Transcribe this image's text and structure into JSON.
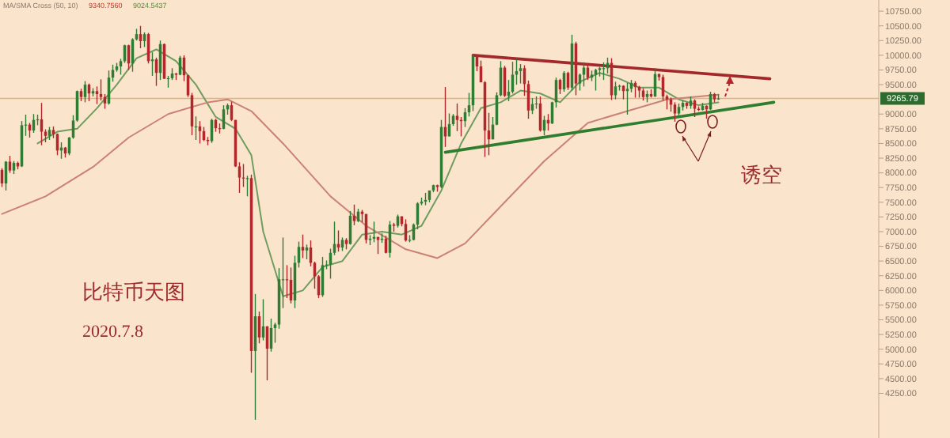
{
  "chart_data": {
    "type": "candlestick",
    "title": "比特币天图",
    "subtitle": "2020.7.8",
    "annotations": [
      "MA/SMA Cross (50, 10)",
      "9340.7560",
      "9024.5437",
      "诱空"
    ],
    "categories": [
      null,
      null,
      null,
      null,
      null,
      null,
      null,
      null,
      null,
      null,
      null,
      null,
      null,
      null,
      null,
      null,
      null,
      null,
      null,
      null,
      null,
      null,
      null,
      null,
      null,
      null,
      null,
      null,
      null,
      null,
      null,
      null,
      null,
      null,
      null,
      null,
      null,
      null,
      null,
      null,
      null,
      null,
      null,
      null,
      null,
      null,
      null,
      null,
      null,
      null,
      null,
      null,
      null,
      null,
      null,
      null,
      null,
      null,
      null,
      null,
      null,
      null,
      null,
      null,
      null,
      null,
      null,
      null,
      null,
      null,
      null,
      null,
      null,
      null,
      null,
      null,
      null,
      null,
      null,
      null,
      null,
      null,
      null,
      null,
      null,
      null,
      null,
      null,
      null,
      null,
      null,
      null,
      null,
      null,
      null,
      null,
      null,
      null,
      null,
      null,
      null,
      null,
      null,
      null,
      null,
      null,
      null,
      null,
      null,
      null,
      null,
      null,
      null,
      null,
      null,
      null,
      null,
      null,
      null,
      null,
      null,
      null,
      null,
      null,
      null,
      null,
      null,
      null,
      null,
      null,
      null,
      null,
      null,
      null,
      null,
      null,
      null,
      null,
      null,
      null,
      null,
      null,
      null,
      null,
      null,
      null,
      null,
      null,
      null,
      null,
      null,
      null,
      null,
      null,
      null,
      null,
      null,
      null,
      null,
      null,
      null,
      null,
      null,
      null,
      null,
      null,
      null,
      null,
      null,
      null,
      null,
      null,
      null,
      null,
      null,
      null,
      null,
      null,
      null,
      null,
      null,
      null,
      null,
      null,
      null,
      null,
      null,
      null,
      null,
      null,
      null,
      null,
      null,
      null,
      null,
      null,
      null,
      null,
      null,
      null,
      null,
      null,
      null,
      null,
      null,
      null,
      null,
      null,
      null,
      null,
      null,
      null,
      null,
      null,
      null,
      null,
      null,
      null,
      null,
      null,
      null,
      null
    ],
    "ohlc": [
      [
        8050,
        8080,
        7760,
        7820
      ],
      [
        7820,
        8200,
        7700,
        8190
      ],
      [
        8190,
        8290,
        8000,
        8040
      ],
      [
        8040,
        8200,
        7980,
        8170
      ],
      [
        8170,
        8190,
        8060,
        8110
      ],
      [
        8110,
        8880,
        8100,
        8810
      ],
      [
        8810,
        8990,
        8630,
        8820
      ],
      [
        8820,
        8850,
        8600,
        8720
      ],
      [
        8720,
        9000,
        8680,
        8900
      ],
      [
        8900,
        8990,
        8810,
        8910
      ],
      [
        8910,
        9190,
        8470,
        8700
      ],
      [
        8700,
        8740,
        8520,
        8630
      ],
      [
        8630,
        8780,
        8560,
        8730
      ],
      [
        8730,
        8790,
        8590,
        8660
      ],
      [
        8660,
        8670,
        8300,
        8380
      ],
      [
        8380,
        8520,
        8240,
        8430
      ],
      [
        8430,
        8440,
        8260,
        8330
      ],
      [
        8330,
        8610,
        8300,
        8600
      ],
      [
        8600,
        8980,
        8580,
        8890
      ],
      [
        8890,
        9400,
        8870,
        9390
      ],
      [
        9390,
        9430,
        9220,
        9290
      ],
      [
        9290,
        9560,
        9200,
        9500
      ],
      [
        9500,
        9520,
        9220,
        9350
      ],
      [
        9350,
        9440,
        9300,
        9390
      ],
      [
        9390,
        9470,
        9170,
        9340
      ],
      [
        9340,
        9590,
        9230,
        9290
      ],
      [
        9290,
        9340,
        9090,
        9180
      ],
      [
        9180,
        9740,
        9160,
        9620
      ],
      [
        9620,
        9840,
        9550,
        9750
      ],
      [
        9750,
        9870,
        9720,
        9810
      ],
      [
        9810,
        9940,
        9670,
        9900
      ],
      [
        9900,
        10180,
        9870,
        10170
      ],
      [
        10170,
        10180,
        9750,
        9860
      ],
      [
        9860,
        10290,
        9720,
        10270
      ],
      [
        10270,
        10450,
        10250,
        10360
      ],
      [
        10360,
        10500,
        10120,
        10240
      ],
      [
        10240,
        10390,
        10140,
        10360
      ],
      [
        10360,
        10380,
        9860,
        9900
      ],
      [
        9900,
        10050,
        9650,
        9930
      ],
      [
        9930,
        9960,
        9480,
        9700
      ],
      [
        9700,
        10250,
        9580,
        10190
      ],
      [
        10190,
        10200,
        9600,
        9600
      ],
      [
        9600,
        9650,
        9450,
        9610
      ],
      [
        9610,
        9780,
        9580,
        9690
      ],
      [
        9690,
        9700,
        9580,
        9670
      ],
      [
        9670,
        9990,
        9660,
        9960
      ],
      [
        9960,
        10000,
        9560,
        9660
      ],
      [
        9660,
        9670,
        9290,
        9320
      ],
      [
        9320,
        9360,
        8640,
        8790
      ],
      [
        8790,
        8960,
        8560,
        8790
      ],
      [
        8790,
        8880,
        8500,
        8710
      ],
      [
        8710,
        8780,
        8540,
        8560
      ],
      [
        8560,
        8610,
        8470,
        8540
      ],
      [
        8540,
        8920,
        8510,
        8900
      ],
      [
        8900,
        8920,
        8700,
        8760
      ],
      [
        8760,
        8840,
        8670,
        8750
      ],
      [
        8750,
        9150,
        8740,
        9080
      ],
      [
        9080,
        9180,
        8990,
        9150
      ],
      [
        9150,
        9210,
        8880,
        8900
      ],
      [
        8900,
        8900,
        8100,
        8110
      ],
      [
        8110,
        8180,
        7660,
        7920
      ],
      [
        7920,
        8150,
        7760,
        7910
      ],
      [
        7910,
        7950,
        7600,
        7910
      ],
      [
        7910,
        7970,
        4600,
        4970
      ],
      [
        4970,
        5940,
        3800,
        5560
      ],
      [
        5560,
        5640,
        5100,
        5200
      ],
      [
        5200,
        5850,
        5150,
        5390
      ],
      [
        5390,
        5390,
        4470,
        5010
      ],
      [
        5010,
        5520,
        4960,
        5360
      ],
      [
        5360,
        5450,
        5110,
        5420
      ],
      [
        5420,
        6380,
        5350,
        6190
      ],
      [
        6190,
        6900,
        5700,
        6190
      ],
      [
        6190,
        6430,
        5870,
        6180
      ],
      [
        6180,
        6390,
        5780,
        5830
      ],
      [
        5830,
        6590,
        5700,
        6470
      ],
      [
        6470,
        6830,
        6390,
        6740
      ],
      [
        6740,
        6950,
        6550,
        6680
      ],
      [
        6680,
        6780,
        6530,
        6730
      ],
      [
        6730,
        6850,
        6410,
        6470
      ],
      [
        6470,
        6490,
        6030,
        6240
      ],
      [
        6240,
        6260,
        5870,
        5920
      ],
      [
        5920,
        6570,
        5890,
        6430
      ],
      [
        6430,
        6510,
        6360,
        6440
      ],
      [
        6440,
        6710,
        6200,
        6640
      ],
      [
        6640,
        7170,
        6600,
        6790
      ],
      [
        6790,
        7020,
        6660,
        6730
      ],
      [
        6730,
        6900,
        6670,
        6860
      ],
      [
        6860,
        6890,
        6700,
        6790
      ],
      [
        6790,
        7350,
        6780,
        7270
      ],
      [
        7270,
        7460,
        7110,
        7180
      ],
      [
        7180,
        7390,
        7160,
        7340
      ],
      [
        7340,
        7370,
        7160,
        7300
      ],
      [
        7300,
        7300,
        6800,
        6860
      ],
      [
        6860,
        6940,
        6770,
        6880
      ],
      [
        6880,
        7170,
        6820,
        6910
      ],
      [
        6910,
        6910,
        6620,
        6860
      ],
      [
        6860,
        6970,
        6810,
        6880
      ],
      [
        6880,
        6930,
        6630,
        6640
      ],
      [
        6640,
        7180,
        6560,
        7120
      ],
      [
        7120,
        7150,
        7000,
        7100
      ],
      [
        7100,
        7290,
        7070,
        7260
      ],
      [
        7260,
        7260,
        7090,
        7130
      ],
      [
        7130,
        7210,
        6830,
        6850
      ],
      [
        6850,
        6940,
        6820,
        6860
      ],
      [
        6860,
        7140,
        6850,
        7120
      ],
      [
        7120,
        7500,
        7040,
        7480
      ],
      [
        7480,
        7580,
        7450,
        7510
      ],
      [
        7510,
        7660,
        7450,
        7540
      ],
      [
        7540,
        7700,
        7500,
        7700
      ],
      [
        7700,
        7800,
        7670,
        7790
      ],
      [
        7790,
        7800,
        7680,
        7760
      ],
      [
        7760,
        8900,
        7740,
        8780
      ],
      [
        8780,
        9460,
        8440,
        8620
      ],
      [
        8620,
        9010,
        8620,
        8830
      ],
      [
        8830,
        9000,
        8800,
        8970
      ],
      [
        8970,
        9180,
        8710,
        8900
      ],
      [
        8900,
        8950,
        8620,
        8880
      ],
      [
        8880,
        9100,
        8780,
        9030
      ],
      [
        9030,
        9360,
        8960,
        9150
      ],
      [
        9150,
        10020,
        9050,
        9990
      ],
      [
        9990,
        10000,
        9730,
        9810
      ],
      [
        9810,
        9910,
        9540,
        9540
      ],
      [
        9540,
        9560,
        8270,
        8720
      ],
      [
        8720,
        9020,
        8300,
        8570
      ],
      [
        8570,
        8950,
        8570,
        8820
      ],
      [
        8820,
        9370,
        8810,
        9320
      ],
      [
        9320,
        9900,
        9300,
        9790
      ],
      [
        9790,
        9820,
        9290,
        9310
      ],
      [
        9310,
        9580,
        9220,
        9380
      ],
      [
        9380,
        9890,
        9350,
        9670
      ],
      [
        9670,
        9940,
        9500,
        9730
      ],
      [
        9730,
        9850,
        9520,
        9780
      ],
      [
        9780,
        9830,
        9310,
        9510
      ],
      [
        9510,
        9570,
        8920,
        9060
      ],
      [
        9060,
        9270,
        9000,
        9170
      ],
      [
        9170,
        9300,
        9090,
        9180
      ],
      [
        9180,
        9300,
        8700,
        8720
      ],
      [
        8720,
        8970,
        8640,
        8900
      ],
      [
        8900,
        9000,
        8720,
        8840
      ],
      [
        8840,
        9210,
        8830,
        9200
      ],
      [
        9200,
        9620,
        9110,
        9580
      ],
      [
        9580,
        9600,
        9340,
        9420
      ],
      [
        9420,
        9730,
        9380,
        9700
      ],
      [
        9700,
        9720,
        9410,
        9450
      ],
      [
        9450,
        10350,
        9400,
        10200
      ],
      [
        10200,
        10230,
        9320,
        9520
      ],
      [
        9520,
        9690,
        9400,
        9670
      ],
      [
        9670,
        9880,
        9470,
        9790
      ],
      [
        9790,
        9850,
        9580,
        9620
      ],
      [
        9620,
        9740,
        9560,
        9670
      ],
      [
        9670,
        9770,
        9400,
        9750
      ],
      [
        9750,
        9800,
        9640,
        9780
      ],
      [
        9780,
        9880,
        9580,
        9780
      ],
      [
        9780,
        9960,
        9690,
        9870
      ],
      [
        9870,
        9950,
        9240,
        9320
      ],
      [
        9320,
        9550,
        9250,
        9470
      ],
      [
        9470,
        9500,
        9400,
        9480
      ],
      [
        9480,
        9490,
        9250,
        9390
      ],
      [
        9390,
        9530,
        8990,
        9430
      ],
      [
        9430,
        9580,
        9370,
        9530
      ],
      [
        9530,
        9560,
        9280,
        9460
      ],
      [
        9460,
        9480,
        9280,
        9400
      ],
      [
        9400,
        9440,
        9230,
        9290
      ],
      [
        9290,
        9400,
        9200,
        9340
      ],
      [
        9340,
        9420,
        9280,
        9300
      ],
      [
        9300,
        9780,
        9290,
        9680
      ],
      [
        9680,
        9690,
        9570,
        9630
      ],
      [
        9630,
        9670,
        9230,
        9300
      ],
      [
        9300,
        9330,
        9080,
        9250
      ],
      [
        9250,
        9280,
        9040,
        9160
      ],
      [
        9160,
        9200,
        8870,
        9010
      ],
      [
        9010,
        9180,
        8950,
        9120
      ],
      [
        9120,
        9230,
        9060,
        9190
      ],
      [
        9190,
        9200,
        9090,
        9140
      ],
      [
        9140,
        9300,
        9090,
        9230
      ],
      [
        9230,
        9250,
        8950,
        9090
      ],
      [
        9090,
        9130,
        9050,
        9070
      ],
      [
        9070,
        9190,
        9060,
        9140
      ],
      [
        9140,
        9150,
        8920,
        9080
      ],
      [
        9080,
        9380,
        9070,
        9340
      ],
      [
        9340,
        9360,
        9200,
        9250
      ],
      [
        9250,
        9340,
        9240,
        9266
      ],
      null,
      null,
      null,
      null,
      null,
      null,
      null,
      null,
      null,
      null,
      null,
      null,
      null,
      null,
      null,
      null,
      null,
      null,
      null,
      null,
      null,
      null,
      null,
      null,
      null,
      null,
      null,
      null,
      null,
      null,
      null,
      null,
      null,
      null,
      null,
      null,
      null,
      null,
      null,
      null
    ],
    "series": [
      {
        "type": "line",
        "color": "#6f9c5f",
        "values": [
          null,
          null,
          null,
          null,
          null,
          null,
          null,
          null,
          null,
          8500,
          null,
          null,
          null,
          null,
          8700,
          null,
          null,
          null,
          null,
          8750,
          null,
          null,
          null,
          null,
          9100,
          null,
          null,
          null,
          null,
          9500,
          null,
          null,
          null,
          null,
          9950,
          null,
          null,
          null,
          null,
          10100,
          null,
          null,
          null,
          null,
          9900,
          null,
          null,
          null,
          null,
          9500,
          null,
          null,
          null,
          null,
          8950,
          null,
          null,
          null,
          null,
          8750,
          null,
          null,
          null,
          8300,
          null,
          null,
          7000,
          null,
          null,
          null,
          null,
          5900,
          null,
          null,
          null,
          null,
          6000,
          null,
          null,
          null,
          null,
          6400,
          null,
          null,
          null,
          null,
          6500,
          null,
          null,
          null,
          null,
          6950,
          null,
          null,
          null,
          null,
          7000,
          null,
          null,
          null,
          null,
          6950,
          null,
          null,
          null,
          null,
          7100,
          null,
          null,
          null,
          null,
          7700,
          null,
          null,
          null,
          null,
          8500,
          null,
          null,
          null,
          null,
          9100,
          null,
          null,
          null,
          null,
          9200,
          null,
          null,
          null,
          null,
          9400,
          null,
          null,
          null,
          null,
          9350,
          null,
          null,
          null,
          null,
          9200,
          null,
          null,
          null,
          null,
          9550,
          null,
          null,
          null,
          null,
          9700,
          null,
          null,
          null,
          null,
          9600,
          null,
          null,
          null,
          null,
          9450,
          null,
          null,
          null,
          null,
          9450,
          null,
          null,
          null,
          null,
          9250,
          null,
          null,
          null,
          null,
          9150,
          null,
          null,
          null,
          null,
          9200,
          null,
          null,
          null,
          null,
          null,
          null,
          null,
          null,
          null,
          null,
          null,
          null,
          null,
          null,
          null,
          null,
          null,
          null,
          null,
          null,
          null,
          null,
          null,
          null,
          null,
          null,
          null,
          null,
          null,
          null,
          null,
          null,
          null,
          null,
          null,
          null,
          null,
          null,
          null,
          null
        ]
      },
      {
        "type": "line",
        "color": "#c98274",
        "values": [
          7300,
          null,
          null,
          null,
          null,
          null,
          null,
          null,
          null,
          null,
          null,
          7600,
          null,
          null,
          null,
          null,
          null,
          null,
          null,
          null,
          null,
          null,
          null,
          8100,
          null,
          null,
          null,
          null,
          null,
          null,
          null,
          null,
          8600,
          null,
          null,
          null,
          null,
          null,
          null,
          null,
          null,
          null,
          9000,
          null,
          null,
          null,
          null,
          null,
          null,
          null,
          null,
          null,
          9200,
          null,
          null,
          null,
          null,
          9250,
          null,
          null,
          null,
          null,
          null,
          9050,
          null,
          null,
          null,
          null,
          null,
          null,
          null,
          8500,
          null,
          null,
          null,
          null,
          null,
          null,
          null,
          null,
          null,
          null,
          null,
          7600,
          null,
          null,
          null,
          null,
          null,
          null,
          null,
          null,
          7100,
          null,
          null,
          null,
          null,
          null,
          null,
          null,
          null,
          null,
          6700,
          null,
          null,
          null,
          null,
          null,
          null,
          null,
          6550,
          null,
          null,
          null,
          null,
          null,
          null,
          6800,
          null,
          null,
          null,
          null,
          null,
          null,
          null,
          null,
          null,
          7500,
          null,
          null,
          null,
          null,
          null,
          null,
          null,
          null,
          null,
          8200,
          null,
          null,
          null,
          null,
          null,
          null,
          null,
          null,
          null,
          null,
          8850,
          null,
          null,
          null,
          null,
          null,
          null,
          null,
          null,
          null,
          9050,
          null,
          null,
          null,
          null,
          null,
          null,
          null,
          null,
          null,
          9250,
          null,
          null,
          null,
          null,
          null,
          null,
          null,
          null,
          null,
          null,
          null,
          null,
          9330,
          null,
          null,
          null,
          null,
          null,
          null,
          null,
          null,
          null,
          null,
          null,
          null,
          null,
          null,
          null,
          null,
          null,
          null,
          null,
          null,
          null,
          null,
          null,
          null,
          null,
          null,
          null,
          null,
          null,
          null,
          null,
          null,
          null,
          null,
          null,
          null,
          null,
          null,
          null,
          null
        ]
      },
      {
        "type": "line",
        "color": "#a3282b",
        "values": [
          null,
          null,
          null,
          null,
          null,
          null,
          null,
          null,
          null,
          null,
          null,
          null,
          null,
          null,
          null,
          null,
          null,
          null,
          null,
          null,
          null,
          null,
          null,
          null,
          null,
          null,
          null,
          null,
          null,
          null,
          null,
          null,
          null,
          null,
          null,
          null,
          null,
          null,
          null,
          null,
          null,
          null,
          null,
          null,
          null,
          null,
          null,
          null,
          null,
          null,
          null,
          null,
          null,
          null,
          null,
          null,
          null,
          null,
          null,
          null,
          null,
          null,
          null,
          null,
          null,
          null,
          null,
          null,
          null,
          null,
          null,
          null,
          null,
          null,
          null,
          null,
          null,
          null,
          null,
          null,
          null,
          null,
          null,
          null,
          null,
          null,
          null,
          null,
          null,
          null,
          null,
          null,
          null,
          null,
          null,
          null,
          null,
          null,
          null,
          null,
          null,
          null,
          null,
          null,
          null,
          null,
          null,
          null,
          null,
          null,
          null,
          null,
          null,
          null,
          null,
          null,
          null,
          null,
          null,
          10000,
          null,
          null,
          null,
          null,
          null,
          null,
          null,
          null,
          null,
          null,
          null,
          null,
          null,
          null,
          null,
          null,
          null,
          null,
          null,
          null,
          null,
          null,
          null,
          null,
          null,
          null,
          null,
          null,
          null,
          null,
          null,
          null,
          null,
          null,
          null,
          null,
          null,
          null,
          null,
          null,
          null,
          null,
          null,
          null,
          null,
          null,
          null,
          null,
          null,
          null,
          null,
          null,
          null,
          null,
          null,
          null,
          null,
          null,
          null,
          null,
          null,
          null,
          null,
          null,
          null,
          null,
          null,
          null,
          null,
          null,
          null,
          null,
          null,
          null,
          9600,
          null,
          null,
          null,
          null,
          null,
          null,
          null,
          null,
          null,
          null,
          null,
          null,
          null,
          null,
          null,
          null,
          null,
          null,
          null,
          null,
          null,
          null,
          null,
          null,
          null,
          null,
          null
        ]
      },
      {
        "type": "line",
        "color": "#2f7d2f",
        "values": [
          null,
          null,
          null,
          null,
          null,
          null,
          null,
          null,
          null,
          null,
          null,
          null,
          null,
          null,
          null,
          null,
          null,
          null,
          null,
          null,
          null,
          null,
          null,
          null,
          null,
          null,
          null,
          null,
          null,
          null,
          null,
          null,
          null,
          null,
          null,
          null,
          null,
          null,
          null,
          null,
          null,
          null,
          null,
          null,
          null,
          null,
          null,
          null,
          null,
          null,
          null,
          null,
          null,
          null,
          null,
          null,
          null,
          null,
          null,
          null,
          null,
          null,
          null,
          null,
          null,
          null,
          null,
          null,
          null,
          null,
          null,
          null,
          null,
          null,
          null,
          null,
          null,
          null,
          null,
          null,
          null,
          null,
          null,
          null,
          null,
          null,
          null,
          null,
          null,
          null,
          null,
          null,
          null,
          null,
          null,
          null,
          null,
          null,
          null,
          null,
          null,
          null,
          null,
          null,
          null,
          null,
          null,
          null,
          null,
          null,
          null,
          null,
          8350,
          null,
          null,
          null,
          null,
          null,
          null,
          null,
          null,
          null,
          null,
          null,
          null,
          null,
          null,
          null,
          null,
          null,
          null,
          null,
          null,
          null,
          null,
          null,
          null,
          null,
          null,
          null,
          null,
          null,
          null,
          null,
          null,
          null,
          null,
          null,
          null,
          null,
          null,
          null,
          null,
          null,
          null,
          null,
          null,
          null,
          null,
          null,
          null,
          null,
          null,
          null,
          null,
          null,
          null,
          null,
          null,
          null,
          null,
          null,
          null,
          null,
          null,
          null,
          null,
          null,
          null,
          null,
          null,
          null,
          null,
          null,
          null,
          null,
          null,
          null,
          null,
          null,
          null,
          null,
          null,
          null,
          null,
          9200,
          null,
          null,
          null,
          null,
          null,
          null,
          null,
          null,
          null,
          null,
          null,
          null,
          null,
          null,
          null,
          null,
          null,
          null,
          null,
          null,
          null,
          null,
          null,
          null,
          null,
          null
        ]
      }
    ],
    "ref_lines": [
      {
        "axis": "y",
        "value": 9265.79,
        "label": "9265.79",
        "color": "#d6b48e"
      }
    ],
    "ylim": [
      3490,
      10940
    ],
    "yticks": [
      {
        "value": 4250,
        "label": "4250.00"
      },
      {
        "value": 4500,
        "label": "4500.00"
      },
      {
        "value": 4750,
        "label": "4750.00"
      },
      {
        "value": 5000,
        "label": "5000.00"
      },
      {
        "value": 5250,
        "label": "5250.00"
      },
      {
        "value": 5500,
        "label": "5500.00"
      },
      {
        "value": 5750,
        "label": "5750.00"
      },
      {
        "value": 6000,
        "label": "6000.00"
      },
      {
        "value": 6250,
        "label": "6250.00"
      },
      {
        "value": 6500,
        "label": "6500.00"
      },
      {
        "value": 6750,
        "label": "6750.00"
      },
      {
        "value": 7000,
        "label": "7000.00"
      },
      {
        "value": 7250,
        "label": "7250.00"
      },
      {
        "value": 7500,
        "label": "7500.00"
      },
      {
        "value": 7750,
        "label": "7750.00"
      },
      {
        "value": 8000,
        "label": "8000.00"
      },
      {
        "value": 8250,
        "label": "8250.00"
      },
      {
        "value": 8500,
        "label": "8500.00"
      },
      {
        "value": 8750,
        "label": "8750.00"
      },
      {
        "value": 9000,
        "label": "9000.00"
      },
      {
        "value": 9500,
        "label": "9500.00"
      },
      {
        "value": 9750,
        "label": "9750.00"
      },
      {
        "value": 10000,
        "label": "10000.00"
      },
      {
        "value": 10250,
        "label": "10250.00"
      },
      {
        "value": 10500,
        "label": "10500.00"
      },
      {
        "value": 10750,
        "label": "10750.00"
      }
    ],
    "tick_labels": "y",
    "grid": false
  }
}
